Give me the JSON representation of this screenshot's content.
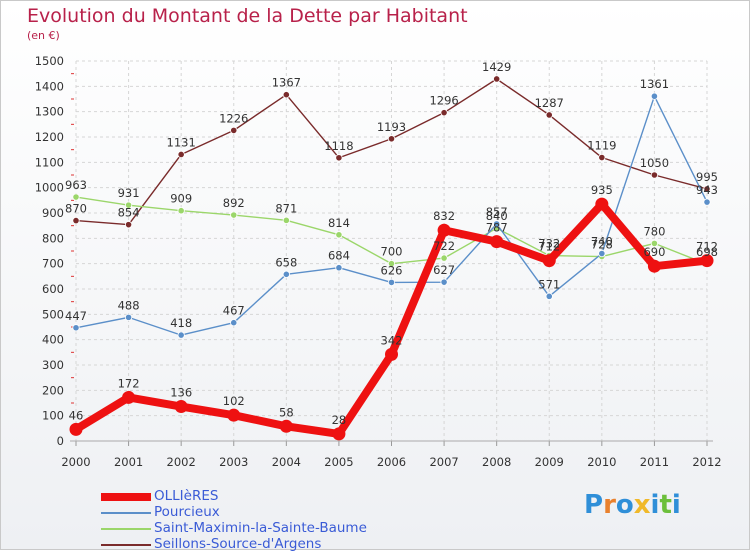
{
  "title": "Evolution du Montant de la Dette par Habitant",
  "subtitle": "(en €)",
  "logo": {
    "letters": [
      "P",
      "r",
      "o",
      "x",
      "i",
      "t",
      "i"
    ],
    "colors": [
      "#2f8fd8",
      "#e9812d",
      "#2f8fd8",
      "#f0b92a",
      "#2f8fd8",
      "#6cbf3b",
      "#2f8fd8"
    ]
  },
  "chart_data": {
    "type": "line",
    "x": [
      "2000",
      "2001",
      "2002",
      "2003",
      "2004",
      "2005",
      "2006",
      "2007",
      "2008",
      "2009",
      "2010",
      "2011",
      "2012"
    ],
    "ylim": [
      0,
      1500
    ],
    "yticks": [
      0,
      100,
      200,
      300,
      400,
      500,
      600,
      700,
      800,
      900,
      1000,
      1100,
      1200,
      1300,
      1400,
      1500
    ],
    "grid": true,
    "legend_position": "bottom-left",
    "series": [
      {
        "name": "OLLIèRES",
        "color": "#ee1111",
        "values": [
          46,
          172,
          136,
          102,
          58,
          28,
          342,
          832,
          787,
          712,
          935,
          690,
          712
        ]
      },
      {
        "name": "Pourcieux",
        "color": "#5b8fc9",
        "values": [
          447,
          488,
          418,
          467,
          658,
          684,
          626,
          627,
          857,
          571,
          740,
          1361,
          943
        ]
      },
      {
        "name": "Saint-Maximin-la-Sainte-Baume",
        "color": "#9bd66a",
        "values": [
          963,
          931,
          909,
          892,
          871,
          814,
          700,
          722,
          840,
          732,
          728,
          780,
          698
        ]
      },
      {
        "name": "Seillons-Source-d'Argens",
        "color": "#7a2b2b",
        "values": [
          870,
          854,
          1131,
          1226,
          1367,
          1118,
          1193,
          1296,
          1429,
          1287,
          1119,
          1050,
          995
        ]
      }
    ]
  }
}
